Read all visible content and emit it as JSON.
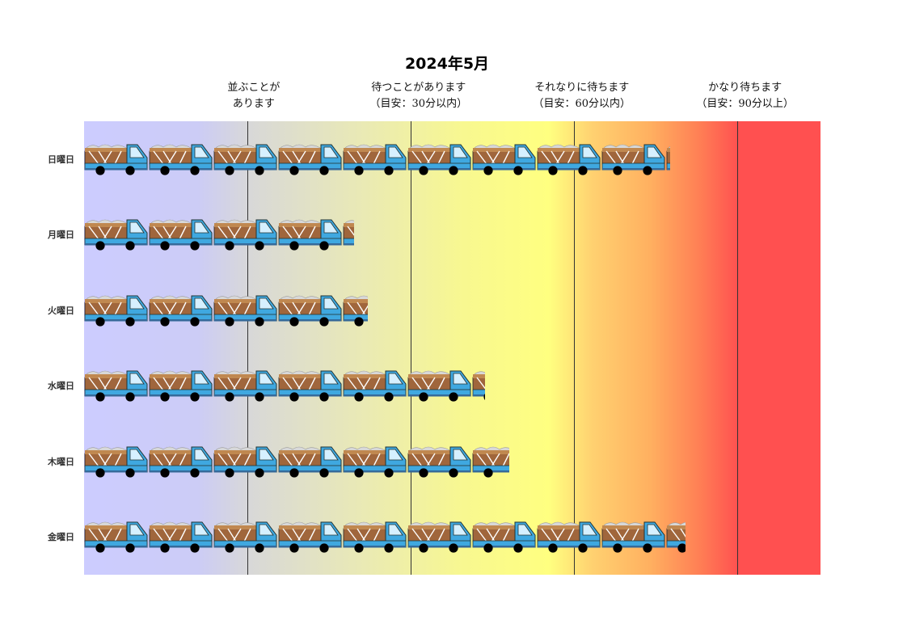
{
  "chart_data": {
    "type": "bar",
    "orientation": "horizontal",
    "title": "2024年5月",
    "categories": [
      "日曜日",
      "月曜日",
      "火曜日",
      "水曜日",
      "木曜日",
      "金曜日"
    ],
    "values": [
      9.05,
      4.17,
      4.38,
      6.19,
      6.56,
      9.28
    ],
    "xlim": [
      0,
      11.37
    ],
    "zones": [
      {
        "line1": "並ぶことが",
        "line2": "あります",
        "threshold": 2.52
      },
      {
        "line1": "待つことがあります",
        "line2": "（目安：30分以内）",
        "threshold": 5.04
      },
      {
        "line1": "それなりに待ちます",
        "line2": "（目安：60分以内）",
        "threshold": 7.56
      },
      {
        "line1": "かなり待ちます",
        "line2": "（目安：90分以上）",
        "threshold": 10.08
      }
    ],
    "grid": false,
    "legend": "none",
    "mark_icon": "dump-truck-icon",
    "colors": {
      "gradient_start": "#ccccff",
      "gradient_mid": "#ffff80",
      "gradient_end": "#ff5050",
      "threshold_line": "#333333"
    }
  }
}
